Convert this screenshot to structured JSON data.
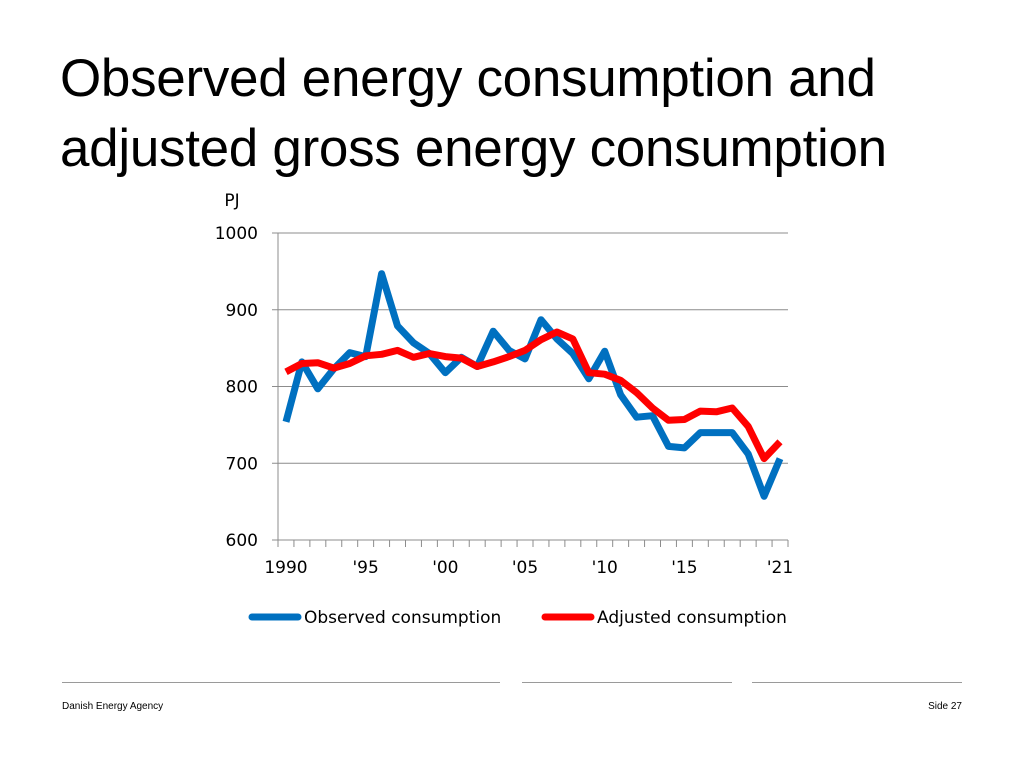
{
  "slide": {
    "title_line1": "Observed energy consumption and",
    "title_line2": "adjusted gross energy consumption",
    "footer_left": "Danish Energy Agency",
    "footer_right": "Side 27"
  },
  "chart_data": {
    "type": "line",
    "title": "",
    "ylabel": "PJ",
    "xlabel": "",
    "ylim": [
      600,
      1000
    ],
    "yticks": [
      600,
      700,
      800,
      900,
      1000
    ],
    "x": [
      1990,
      1991,
      1992,
      1993,
      1994,
      1995,
      1996,
      1997,
      1998,
      1999,
      2000,
      2001,
      2002,
      2003,
      2004,
      2005,
      2006,
      2007,
      2008,
      2009,
      2010,
      2011,
      2012,
      2013,
      2014,
      2015,
      2016,
      2017,
      2018,
      2019,
      2020,
      2021
    ],
    "xtick_labels": [
      {
        "x": 1990,
        "label": "1990"
      },
      {
        "x": 1995,
        "label": "'95"
      },
      {
        "x": 2000,
        "label": "'00"
      },
      {
        "x": 2005,
        "label": "'05"
      },
      {
        "x": 2010,
        "label": "'10"
      },
      {
        "x": 2015,
        "label": "'15"
      },
      {
        "x": 2021,
        "label": "'21"
      }
    ],
    "grid": true,
    "legend_position": "bottom",
    "series": [
      {
        "name": "Observed consumption",
        "color": "#0070c0",
        "values": [
          754,
          832,
          797,
          823,
          844,
          839,
          947,
          879,
          857,
          843,
          818,
          838,
          826,
          872,
          847,
          836,
          887,
          862,
          843,
          810,
          846,
          789,
          760,
          762,
          722,
          720,
          740,
          740,
          740,
          712,
          657,
          706
        ]
      },
      {
        "name": "Adjusted consumption",
        "color": "#ff0000",
        "values": [
          819,
          830,
          831,
          824,
          830,
          840,
          842,
          847,
          838,
          843,
          839,
          837,
          826,
          832,
          839,
          847,
          861,
          871,
          862,
          818,
          816,
          808,
          792,
          772,
          756,
          757,
          768,
          767,
          772,
          748,
          706,
          728
        ]
      }
    ]
  }
}
